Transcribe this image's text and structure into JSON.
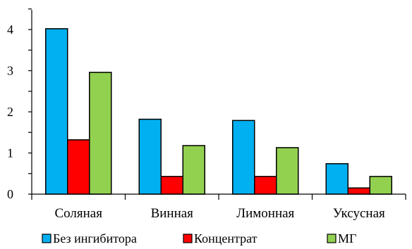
{
  "chart_data": {
    "type": "bar",
    "title": "",
    "xlabel": "",
    "ylabel": "",
    "ylim": [
      0,
      4.5
    ],
    "yticks": [
      "0",
      "1",
      "2",
      "3",
      "4"
    ],
    "categories": [
      "Соляная",
      "Винная",
      "Лимонная",
      "Уксусная"
    ],
    "series": [
      {
        "name": "Без ингибитора",
        "color": "#00B0F0",
        "values": [
          4.02,
          1.82,
          1.79,
          0.74
        ]
      },
      {
        "name": "Концентрат",
        "color": "#FF0000",
        "values": [
          1.32,
          0.43,
          0.43,
          0.15
        ]
      },
      {
        "name": "МГ",
        "color": "#92D050",
        "values": [
          2.96,
          1.18,
          1.13,
          0.43
        ]
      }
    ],
    "grid": false,
    "legend": "bottom"
  }
}
